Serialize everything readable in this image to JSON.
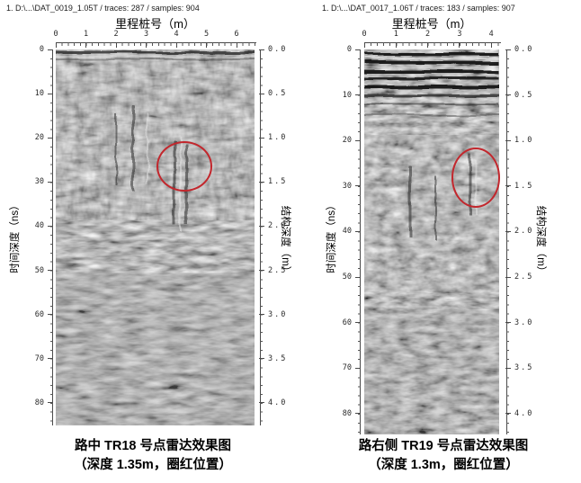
{
  "chart_data": [
    {
      "type": "heatmap",
      "kind": "ground-penetrating-radar-profile",
      "header": "1. D:\\...\\DAT_0019_1.05T / traces: 287 / samples: 904",
      "title": "里程桩号（m）",
      "x_ticks": [
        "0",
        "1",
        "2",
        "3",
        "4",
        "5",
        "6"
      ],
      "xlim": [
        0,
        6.6
      ],
      "left_axis": {
        "label": "时间深度（ns）",
        "ticks": [
          "0",
          "10",
          "20",
          "30",
          "40",
          "50",
          "60",
          "70",
          "80"
        ],
        "lim": [
          0,
          85
        ]
      },
      "right_axis": {
        "label": "结构深度（m）",
        "ticks": [
          "0.0",
          "0.5",
          "1.0",
          "1.5",
          "2.0",
          "2.5",
          "3.0",
          "3.5",
          "4.0"
        ],
        "lim": [
          0,
          4.25
        ]
      },
      "annotation": {
        "shape": "circle",
        "color": "#c2272d",
        "x_m": 4.2,
        "depth_m": 1.3,
        "radius_x_m": 0.87,
        "radius_y_m": 0.265
      },
      "caption_line1": "路中 TR18 号点雷达效果图",
      "caption_line2": "（深度 1.35m，圈红位置）"
    },
    {
      "type": "heatmap",
      "kind": "ground-penetrating-radar-profile",
      "header": "1. D:\\...\\DAT_0017_1.06T / traces: 183 / samples: 907",
      "title": "里程桩号（m）",
      "x_ticks": [
        "0",
        "1",
        "2",
        "3",
        "4"
      ],
      "xlim": [
        0,
        4.25
      ],
      "left_axis": {
        "label": "时间深度（ns）",
        "ticks": [
          "0",
          "10",
          "20",
          "30",
          "40",
          "50",
          "60",
          "70",
          "80"
        ],
        "lim": [
          0,
          84.5
        ]
      },
      "right_axis": {
        "label": "结构深度（m）",
        "ticks": [
          "0.0",
          "0.5",
          "1.0",
          "1.5",
          "2.0",
          "2.5",
          "3.0",
          "3.5",
          "4.0"
        ],
        "lim": [
          0,
          4.2
        ]
      },
      "annotation": {
        "shape": "circle",
        "color": "#c2272d",
        "x_m": 3.46,
        "depth_m": 1.39,
        "radius_x_m": 0.71,
        "radius_y_m": 0.31
      },
      "caption_line1": "路右侧 TR19 号点雷达效果图",
      "caption_line2": "（深度 1.3m，圈红位置）"
    }
  ]
}
